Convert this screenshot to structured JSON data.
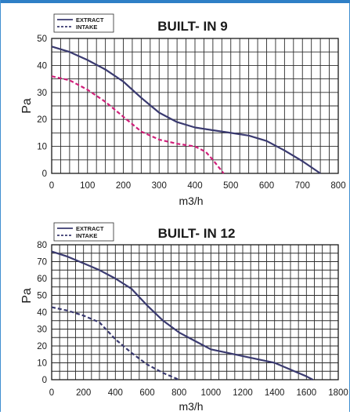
{
  "chart_data": [
    {
      "type": "line",
      "title": "BUILT- IN 9",
      "xlabel": "m3/h",
      "ylabel": "Pa",
      "xlim": [
        0,
        800
      ],
      "ylim": [
        0,
        50
      ],
      "x_ticks": [
        "0",
        "100",
        "200",
        "300",
        "400",
        "500",
        "600",
        "700",
        "800"
      ],
      "y_ticks": [
        "0",
        "10",
        "20",
        "30",
        "40",
        "50"
      ],
      "grid": true,
      "legend": "top-left",
      "series": [
        {
          "name": "EXTRACT",
          "style": "solid",
          "color": "#3a3a70",
          "points": [
            [
              0,
              47
            ],
            [
              50,
              45
            ],
            [
              100,
              42
            ],
            [
              150,
              38.5
            ],
            [
              200,
              34
            ],
            [
              250,
              28
            ],
            [
              300,
              22.5
            ],
            [
              350,
              19
            ],
            [
              400,
              17
            ],
            [
              450,
              16
            ],
            [
              500,
              15
            ],
            [
              550,
              14
            ],
            [
              600,
              12
            ],
            [
              650,
              8.5
            ],
            [
              700,
              4.5
            ],
            [
              750,
              0
            ]
          ]
        },
        {
          "name": "INTAKE",
          "style": "dashed",
          "color": "#d0207a",
          "points": [
            [
              0,
              36
            ],
            [
              50,
              34.5
            ],
            [
              100,
              31
            ],
            [
              150,
              26.5
            ],
            [
              200,
              21
            ],
            [
              250,
              15.5
            ],
            [
              300,
              12.5
            ],
            [
              350,
              11
            ],
            [
              400,
              10
            ],
            [
              430,
              8
            ],
            [
              450,
              5
            ],
            [
              480,
              0
            ]
          ]
        }
      ]
    },
    {
      "type": "line",
      "title": "BUILT- IN 12",
      "xlabel": "m3/h",
      "ylabel": "Pa",
      "xlim": [
        0,
        1800
      ],
      "ylim": [
        0,
        80
      ],
      "x_ticks": [
        "0",
        "200",
        "400",
        "600",
        "800",
        "1000",
        "1200",
        "1400",
        "1600",
        "1800"
      ],
      "y_ticks": [
        "0",
        "10",
        "20",
        "30",
        "40",
        "50",
        "60",
        "70",
        "80"
      ],
      "grid": true,
      "legend": "top-left",
      "series": [
        {
          "name": "EXTRACT",
          "style": "solid",
          "color": "#3a3a70",
          "points": [
            [
              0,
              76
            ],
            [
              100,
              73
            ],
            [
              200,
              69
            ],
            [
              300,
              65
            ],
            [
              400,
              60
            ],
            [
              500,
              54
            ],
            [
              600,
              44
            ],
            [
              700,
              35
            ],
            [
              800,
              28
            ],
            [
              900,
              23
            ],
            [
              1000,
              18
            ],
            [
              1100,
              16
            ],
            [
              1200,
              14
            ],
            [
              1300,
              12
            ],
            [
              1400,
              10
            ],
            [
              1500,
              6
            ],
            [
              1600,
              2
            ],
            [
              1640,
              0
            ]
          ]
        },
        {
          "name": "INTAKE",
          "style": "dashed",
          "color": "#3a3a70",
          "points": [
            [
              0,
              43
            ],
            [
              100,
              41
            ],
            [
              200,
              38
            ],
            [
              300,
              34
            ],
            [
              400,
              24
            ],
            [
              500,
              16
            ],
            [
              600,
              9
            ],
            [
              700,
              4
            ],
            [
              800,
              0
            ]
          ]
        }
      ]
    }
  ]
}
